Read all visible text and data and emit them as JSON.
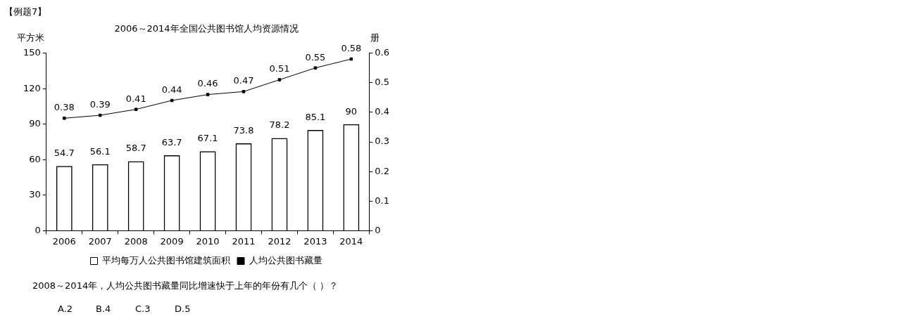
{
  "chart_data": {
    "type": "bar",
    "title": "2006～2014年全国公共图书馆人均资源情况",
    "ylabel": "平方米",
    "y2label": "册",
    "categories": [
      "2006",
      "2007",
      "2008",
      "2009",
      "2010",
      "2011",
      "2012",
      "2013",
      "2014"
    ],
    "series": [
      {
        "name": "平均每万人公共图书馆建筑面积",
        "color": "#000000",
        "values": [
          54.7,
          56.1,
          58.7,
          63.7,
          67.1,
          73.8,
          78.2,
          85.1,
          90
        ]
      },
      {
        "name": "人均公共图书藏量",
        "type": "line",
        "axis": "y2",
        "color": "#000000",
        "marker": "square",
        "values": [
          0.38,
          0.39,
          0.41,
          0.44,
          0.46,
          0.47,
          0.51,
          0.55,
          0.58
        ]
      }
    ],
    "ylim": [
      0,
      150
    ],
    "yticks": [
      0,
      30,
      60,
      90,
      120,
      150
    ],
    "y2lim": [
      0,
      0.6
    ],
    "y2ticks": [
      0,
      0.1,
      0.2,
      0.3,
      0.4,
      0.5,
      0.6
    ],
    "grid": false,
    "legend": "bottom",
    "data_labels": true,
    "annotations": [
      "【例题7】",
      "2008～2014年，人均公共图书藏量同比增速快于上年的年份有几个（ ）？",
      "A.2",
      "B.4",
      "C.3",
      "D.5"
    ]
  }
}
